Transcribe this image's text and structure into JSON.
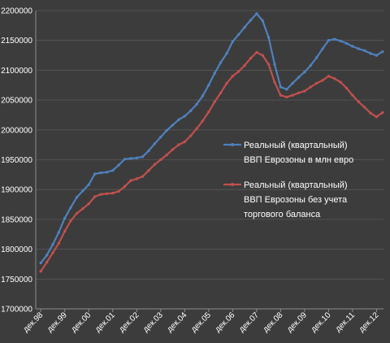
{
  "chart_data": {
    "type": "line",
    "title": "",
    "xlabel": "",
    "ylabel": "",
    "ylim": [
      1700000,
      2200000
    ],
    "yticks": [
      "2200000",
      "2150000",
      "2100000",
      "2050000",
      "2000000",
      "1950000",
      "1900000",
      "1850000",
      "1800000",
      "1750000",
      "1700000"
    ],
    "x": [
      "дек.98",
      "дек.99",
      "дек.00",
      "дек.01",
      "дек.02",
      "дек.03",
      "дек.04",
      "дек.05",
      "дек.06",
      "дек.07",
      "дек.08",
      "дек.09",
      "дек.10",
      "дек.11",
      "дек.12"
    ],
    "xlim": [
      1998.75,
      2013.25
    ],
    "grid": true,
    "legend_position": "right",
    "series": [
      {
        "name": "Реальный (квартальный) ВВП Еврозоны в млн евро",
        "legend_lines": [
          "Реальный (квартальный)",
          "ВВП Еврозоны в млн евро"
        ],
        "color": "#4f81bd",
        "points": [
          [
            1998.96,
            1777000
          ],
          [
            1999.21,
            1790000
          ],
          [
            1999.46,
            1808000
          ],
          [
            1999.71,
            1828000
          ],
          [
            1999.96,
            1852000
          ],
          [
            2000.21,
            1870000
          ],
          [
            2000.46,
            1887000
          ],
          [
            2000.71,
            1898000
          ],
          [
            2000.96,
            1908000
          ],
          [
            2001.21,
            1926000
          ],
          [
            2001.46,
            1928000
          ],
          [
            2001.71,
            1929000
          ],
          [
            2001.96,
            1932000
          ],
          [
            2002.21,
            1941000
          ],
          [
            2002.46,
            1951000
          ],
          [
            2002.71,
            1952000
          ],
          [
            2002.96,
            1953000
          ],
          [
            2003.21,
            1955000
          ],
          [
            2003.46,
            1965000
          ],
          [
            2003.71,
            1977000
          ],
          [
            2003.96,
            1988000
          ],
          [
            2004.21,
            1999000
          ],
          [
            2004.46,
            2008000
          ],
          [
            2004.71,
            2017000
          ],
          [
            2004.96,
            2023000
          ],
          [
            2005.21,
            2032000
          ],
          [
            2005.46,
            2043000
          ],
          [
            2005.71,
            2057000
          ],
          [
            2005.96,
            2075000
          ],
          [
            2006.21,
            2095000
          ],
          [
            2006.46,
            2113000
          ],
          [
            2006.71,
            2128000
          ],
          [
            2006.96,
            2148000
          ],
          [
            2007.21,
            2160000
          ],
          [
            2007.46,
            2172000
          ],
          [
            2007.71,
            2184000
          ],
          [
            2007.96,
            2195000
          ],
          [
            2008.21,
            2183000
          ],
          [
            2008.46,
            2155000
          ],
          [
            2008.71,
            2110000
          ],
          [
            2008.96,
            2072000
          ],
          [
            2009.21,
            2068000
          ],
          [
            2009.46,
            2078000
          ],
          [
            2009.71,
            2088000
          ],
          [
            2009.96,
            2097000
          ],
          [
            2010.21,
            2108000
          ],
          [
            2010.46,
            2121000
          ],
          [
            2010.71,
            2136000
          ],
          [
            2010.96,
            2150000
          ],
          [
            2011.21,
            2152000
          ],
          [
            2011.46,
            2149000
          ],
          [
            2011.71,
            2145000
          ],
          [
            2011.96,
            2140000
          ],
          [
            2012.21,
            2136000
          ],
          [
            2012.46,
            2133000
          ],
          [
            2012.71,
            2128000
          ],
          [
            2012.96,
            2125000
          ],
          [
            2013.21,
            2131000
          ]
        ]
      },
      {
        "name": "Реальный (квартальный) ВВП Еврозоны без учета торгового баланса",
        "legend_lines": [
          "Реальный (квартальный)",
          "ВВП Еврозоны без учета",
          "торгового баланса"
        ],
        "color": "#c0504d",
        "points": [
          [
            1998.96,
            1763000
          ],
          [
            1999.21,
            1778000
          ],
          [
            1999.46,
            1794000
          ],
          [
            1999.71,
            1810000
          ],
          [
            1999.96,
            1830000
          ],
          [
            2000.21,
            1848000
          ],
          [
            2000.46,
            1860000
          ],
          [
            2000.71,
            1868000
          ],
          [
            2000.96,
            1876000
          ],
          [
            2001.21,
            1888000
          ],
          [
            2001.46,
            1892000
          ],
          [
            2001.71,
            1893000
          ],
          [
            2001.96,
            1894000
          ],
          [
            2002.21,
            1897000
          ],
          [
            2002.46,
            1905000
          ],
          [
            2002.71,
            1915000
          ],
          [
            2002.96,
            1918000
          ],
          [
            2003.21,
            1922000
          ],
          [
            2003.46,
            1932000
          ],
          [
            2003.71,
            1942000
          ],
          [
            2003.96,
            1950000
          ],
          [
            2004.21,
            1958000
          ],
          [
            2004.46,
            1967000
          ],
          [
            2004.71,
            1975000
          ],
          [
            2004.96,
            1980000
          ],
          [
            2005.21,
            1990000
          ],
          [
            2005.46,
            2002000
          ],
          [
            2005.71,
            2015000
          ],
          [
            2005.96,
            2030000
          ],
          [
            2006.21,
            2047000
          ],
          [
            2006.46,
            2062000
          ],
          [
            2006.71,
            2078000
          ],
          [
            2006.96,
            2090000
          ],
          [
            2007.21,
            2098000
          ],
          [
            2007.46,
            2108000
          ],
          [
            2007.71,
            2120000
          ],
          [
            2007.96,
            2130000
          ],
          [
            2008.21,
            2125000
          ],
          [
            2008.46,
            2110000
          ],
          [
            2008.71,
            2080000
          ],
          [
            2008.96,
            2058000
          ],
          [
            2009.21,
            2055000
          ],
          [
            2009.46,
            2058000
          ],
          [
            2009.71,
            2062000
          ],
          [
            2009.96,
            2065000
          ],
          [
            2010.21,
            2072000
          ],
          [
            2010.46,
            2078000
          ],
          [
            2010.71,
            2083000
          ],
          [
            2010.96,
            2090000
          ],
          [
            2011.21,
            2086000
          ],
          [
            2011.46,
            2080000
          ],
          [
            2011.71,
            2070000
          ],
          [
            2011.96,
            2058000
          ],
          [
            2012.21,
            2047000
          ],
          [
            2012.46,
            2038000
          ],
          [
            2012.71,
            2028000
          ],
          [
            2012.96,
            2022000
          ],
          [
            2013.21,
            2029000
          ]
        ]
      }
    ]
  }
}
